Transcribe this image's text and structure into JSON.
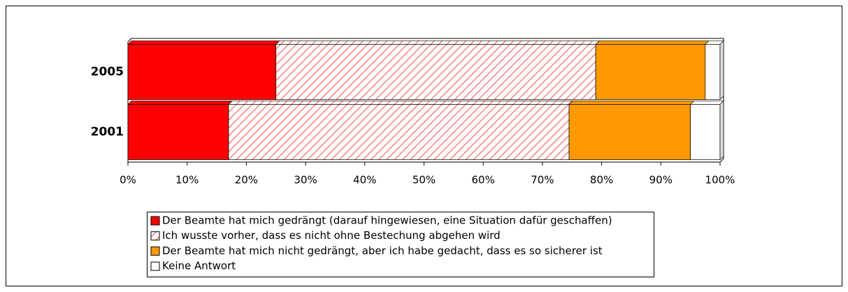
{
  "chart_data": {
    "type": "bar",
    "orientation": "horizontal",
    "stacked": true,
    "categories": [
      "2005",
      "2001"
    ],
    "series": [
      {
        "name": "Der Beamte hat mich gedrängt (darauf hingewiesen, eine Situation dafür geschaffen)",
        "color": "#ff0000",
        "values": [
          25,
          17
        ]
      },
      {
        "name": "Ich wusste vorher, dass es nicht ohne Bestechung abgehen wird",
        "color": "#ff8080",
        "pattern": "hatch",
        "values": [
          54,
          57.5
        ]
      },
      {
        "name": "Der Beamte hat mich nicht gedrängt, aber ich habe gedacht, dass es so sicherer ist",
        "color": "#ff9900",
        "values": [
          18.5,
          20.5
        ]
      },
      {
        "name": "Keine Antwort",
        "color": "#ffffff",
        "values": [
          2.5,
          5
        ]
      }
    ],
    "xlim": [
      0,
      100
    ],
    "xticks": [
      {
        "value": 0,
        "label": "0%"
      },
      {
        "value": 10,
        "label": "10%"
      },
      {
        "value": 20,
        "label": "20%"
      },
      {
        "value": 30,
        "label": "30%"
      },
      {
        "value": 40,
        "label": "40%"
      },
      {
        "value": 50,
        "label": "50%"
      },
      {
        "value": 60,
        "label": "60%"
      },
      {
        "value": 70,
        "label": "70%"
      },
      {
        "value": 80,
        "label": "80%"
      },
      {
        "value": 90,
        "label": "90%"
      },
      {
        "value": 100,
        "label": "100%"
      }
    ],
    "legend": "bottom"
  }
}
